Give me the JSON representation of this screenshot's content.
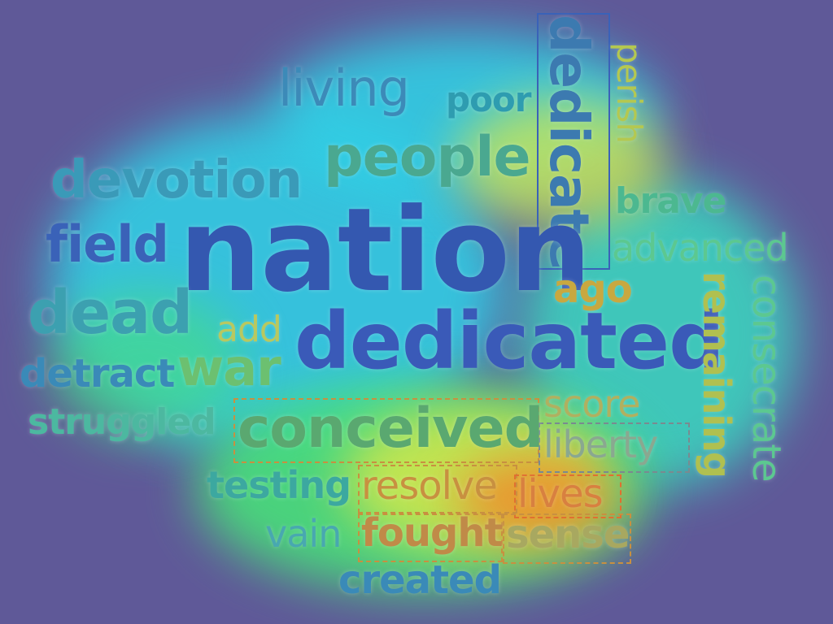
{
  "colors": {
    "background": "#5f5998",
    "heat_low": "#2fd4e8",
    "heat_mid": "#48e07a",
    "heat_high": "#d6e84a",
    "heat_peak": "#f08a2a",
    "word_blue": "#3a62b8",
    "word_teal": "#2e9cb0",
    "word_green": "#4cb890",
    "word_yellow": "#b4c850",
    "word_orange": "#c89040"
  },
  "words": {
    "nation": "nation",
    "dedicated": "dedicated",
    "dedicate": "dedicate",
    "people": "people",
    "devotion": "devotion",
    "living": "living",
    "poor": "poor",
    "perish": "perish",
    "brave": "brave",
    "advanced": "advanced",
    "field": "field",
    "dead": "dead",
    "add": "add",
    "ago": "ago",
    "detract": "detract",
    "war": "war",
    "remaining": "remaining",
    "consecrate": "consecrate",
    "struggled": "struggled",
    "conceived": "conceived",
    "score": "score",
    "liberty": "liberty",
    "testing": "testing",
    "resolve": "resolve",
    "lives": "lives",
    "vain": "vain",
    "fought": "fought",
    "sense": "sense",
    "created": "created"
  }
}
